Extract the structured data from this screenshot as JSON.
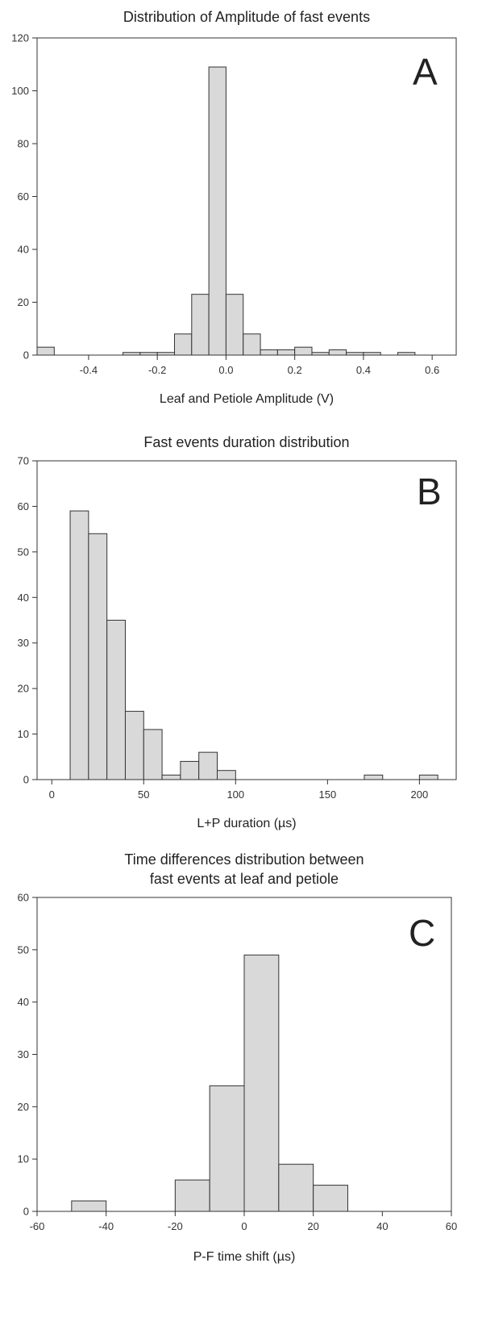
{
  "chart_data": [
    {
      "type": "bar",
      "title": "Distribution of Amplitude of fast events",
      "panel_label": "A",
      "xlabel": "Leaf and Petiole Amplitude (V)",
      "ylabel": "",
      "xlim": [
        -0.55,
        0.67
      ],
      "ylim": [
        0,
        120
      ],
      "xticks": [
        -0.4,
        -0.2,
        0.0,
        0.2,
        0.4,
        0.6
      ],
      "xtick_labels": [
        "-0.4",
        "-0.2",
        "0.0",
        "0.2",
        "0.4",
        "0.6"
      ],
      "yticks": [
        0,
        20,
        40,
        60,
        80,
        100,
        120
      ],
      "ytick_labels": [
        "0",
        "20",
        "40",
        "60",
        "80",
        "100",
        "120"
      ],
      "bins": [
        {
          "x0": -0.55,
          "x1": -0.5,
          "value": 3
        },
        {
          "x0": -0.3,
          "x1": -0.25,
          "value": 1
        },
        {
          "x0": -0.25,
          "x1": -0.2,
          "value": 1
        },
        {
          "x0": -0.2,
          "x1": -0.15,
          "value": 1
        },
        {
          "x0": -0.15,
          "x1": -0.1,
          "value": 8
        },
        {
          "x0": -0.1,
          "x1": -0.05,
          "value": 23
        },
        {
          "x0": -0.05,
          "x1": 0.0,
          "value": 109
        },
        {
          "x0": 0.0,
          "x1": 0.05,
          "value": 23
        },
        {
          "x0": 0.05,
          "x1": 0.1,
          "value": 8
        },
        {
          "x0": 0.1,
          "x1": 0.15,
          "value": 2
        },
        {
          "x0": 0.15,
          "x1": 0.2,
          "value": 2
        },
        {
          "x0": 0.2,
          "x1": 0.25,
          "value": 3
        },
        {
          "x0": 0.25,
          "x1": 0.3,
          "value": 1
        },
        {
          "x0": 0.3,
          "x1": 0.35,
          "value": 2
        },
        {
          "x0": 0.35,
          "x1": 0.4,
          "value": 1
        },
        {
          "x0": 0.4,
          "x1": 0.45,
          "value": 1
        },
        {
          "x0": 0.5,
          "x1": 0.55,
          "value": 1
        }
      ]
    },
    {
      "type": "bar",
      "title": "Fast events duration distribution",
      "panel_label": "B",
      "xlabel": "L+P duration (µs)",
      "ylabel": "",
      "xlim": [
        -8,
        220
      ],
      "ylim": [
        0,
        70
      ],
      "xticks": [
        0,
        50,
        100,
        150,
        200
      ],
      "xtick_labels": [
        "0",
        "50",
        "100",
        "150",
        "200"
      ],
      "yticks": [
        0,
        10,
        20,
        30,
        40,
        50,
        60,
        70
      ],
      "ytick_labels": [
        "0",
        "10",
        "20",
        "30",
        "40",
        "50",
        "60",
        "70"
      ],
      "bins": [
        {
          "x0": 10,
          "x1": 20,
          "value": 59
        },
        {
          "x0": 20,
          "x1": 30,
          "value": 54
        },
        {
          "x0": 30,
          "x1": 40,
          "value": 35
        },
        {
          "x0": 40,
          "x1": 50,
          "value": 15
        },
        {
          "x0": 50,
          "x1": 60,
          "value": 11
        },
        {
          "x0": 60,
          "x1": 70,
          "value": 1
        },
        {
          "x0": 70,
          "x1": 80,
          "value": 4
        },
        {
          "x0": 80,
          "x1": 90,
          "value": 6
        },
        {
          "x0": 90,
          "x1": 100,
          "value": 2
        },
        {
          "x0": 170,
          "x1": 180,
          "value": 1
        },
        {
          "x0": 200,
          "x1": 210,
          "value": 1
        }
      ]
    },
    {
      "type": "bar",
      "title_lines": [
        "Time differences distribution between",
        "fast events at leaf and petiole"
      ],
      "panel_label": "C",
      "xlabel": "P-F time shift (µs)",
      "ylabel": "",
      "xlim": [
        -60,
        60
      ],
      "ylim": [
        0,
        60
      ],
      "xticks": [
        -60,
        -40,
        -20,
        0,
        20,
        40,
        60
      ],
      "xtick_labels": [
        "-60",
        "-40",
        "-20",
        "0",
        "20",
        "40",
        "60"
      ],
      "yticks": [
        0,
        10,
        20,
        30,
        40,
        50,
        60
      ],
      "ytick_labels": [
        "0",
        "10",
        "20",
        "30",
        "40",
        "50",
        "60"
      ],
      "bins": [
        {
          "x0": -50,
          "x1": -40,
          "value": 2
        },
        {
          "x0": -20,
          "x1": -10,
          "value": 6
        },
        {
          "x0": -10,
          "x1": 0,
          "value": 24
        },
        {
          "x0": 0,
          "x1": 10,
          "value": 49
        },
        {
          "x0": 10,
          "x1": 20,
          "value": 9
        },
        {
          "x0": 20,
          "x1": 30,
          "value": 5
        }
      ]
    }
  ],
  "colors": {
    "bar_fill": "#d9d9d9",
    "bar_stroke": "#333333",
    "axis": "#333333"
  }
}
